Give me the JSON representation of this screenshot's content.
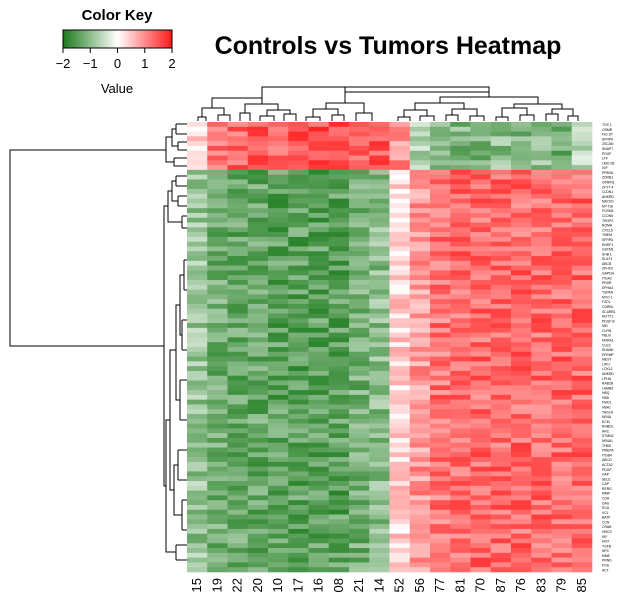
{
  "chart_data": {
    "type": "heatmap",
    "title": "Controls vs Tumors Heatmap",
    "color_key": {
      "title": "Color Key",
      "xlabel": "Value",
      "ticks": [
        "−2",
        "−1",
        "0",
        "1",
        "2"
      ],
      "tick_values": [
        -2,
        -1,
        0,
        1,
        2
      ],
      "colors": {
        "low": "#1a7a1a",
        "mid": "#ffffff",
        "high": "#ff1a1a"
      }
    },
    "columns": [
      "15",
      "19",
      "22",
      "20",
      "10",
      "17",
      "16",
      "08",
      "21",
      "14",
      "52",
      "56",
      "77",
      "81",
      "70",
      "87",
      "76",
      "83",
      "79",
      "85"
    ],
    "column_groups": [
      {
        "count": 11
      },
      {
        "count": 9
      }
    ],
    "row_groups": [
      {
        "rows": 10,
        "values_by_column": [
          0.3,
          1.3,
          1.3,
          1.4,
          1.4,
          1.5,
          1.5,
          1.5,
          1.4,
          1.4,
          1.0,
          -0.6,
          -0.9,
          -1.1,
          -1.1,
          -1.0,
          -1.1,
          -1.0,
          -1.2,
          -0.6
        ]
      },
      {
        "rows": 84,
        "values_by_column": [
          -0.9,
          -1.2,
          -1.3,
          -1.3,
          -1.4,
          -1.4,
          -1.4,
          -1.4,
          -1.2,
          -1.0,
          0.4,
          0.9,
          1.2,
          1.3,
          1.3,
          1.3,
          1.3,
          1.3,
          1.3,
          1.3
        ]
      }
    ],
    "row_labels": [
      "TOX 1",
      "OSMR",
      "FIG 2P",
      "SFRP4",
      "ZSCAN",
      "SNAP7",
      "PDGF",
      "LTF",
      "LMO 2B",
      "IGF",
      "PPARA",
      "ZDRB1",
      "GPRIN1",
      "ZFYT 4",
      "CLDN1",
      "ANKRD",
      "MEOX1",
      "MYT18",
      "FOXM1",
      "CLDN5",
      "TROP2",
      "ROMA",
      "CXCL5",
      "TMEM",
      "SFRPA",
      "RHDF1",
      "GSTM1",
      "SHB 1",
      "SULF1",
      "ABCB",
      "ZFHX3",
      "GAPDH",
      "ITGA2",
      "PRAR",
      "EPHA4",
      "TSPAN",
      "MYO 1",
      "FZD1",
      "CDRBL",
      "SCARB1",
      "NOTT1",
      "PDGF B",
      "NID",
      "CLRN",
      "FBLN",
      "MXRA1",
      "CLEC",
      "SHANK",
      "EFEMP",
      "MEST",
      "LIPO",
      "LOXL2",
      "ANKRD",
      "LPHN",
      "RAB2B",
      "LAMB3",
      "HBQ",
      "HBD",
      "FMO1",
      "HBA1",
      "TAGLN",
      "NR4A",
      "ECM",
      "RHBDL",
      "ARC",
      "STMN2",
      "NR4A1",
      "THBS",
      "PMEPA",
      "ITGB4",
      "ABCG",
      "ACTA2",
      "PDGF",
      "HAP",
      "SELE",
      "CAP",
      "RERG",
      "MMP",
      "CDH",
      "GAS",
      "RCA",
      "VCL",
      "BATF",
      "CCN",
      "CRAB",
      "HRCS",
      "KIF",
      "HOX",
      "TGFB",
      "NPC",
      "MME",
      "PRND",
      "FOS",
      "ACT"
    ]
  }
}
